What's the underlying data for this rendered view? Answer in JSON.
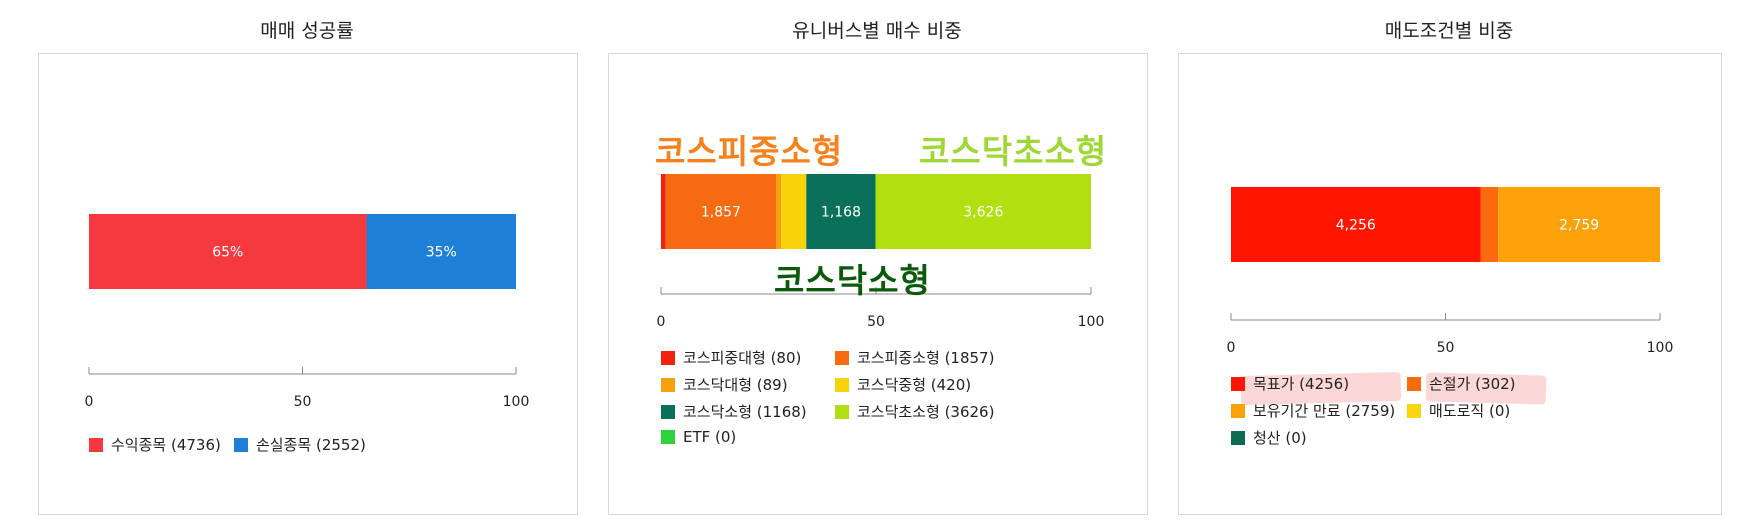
{
  "chart_data": [
    {
      "type": "bar",
      "orientation": "horizontal-stacked",
      "title": "매매 성공률",
      "xlim": [
        0,
        100
      ],
      "ticks": [
        "0",
        "50",
        "100"
      ],
      "series": [
        {
          "name": "수익종목 (4736)",
          "value": 65,
          "label": "65%",
          "color": "#f5393f"
        },
        {
          "name": "손실종목 (2552)",
          "value": 35,
          "label": "35%",
          "color": "#1e7fd6"
        }
      ],
      "legend": "bottom"
    },
    {
      "type": "bar",
      "orientation": "horizontal-stacked",
      "title": "유니버스별 매수 비중",
      "xlim": [
        0,
        100
      ],
      "ticks": [
        "0",
        "50",
        "100"
      ],
      "series": [
        {
          "name": "코스피중대형 (80)",
          "value": 80,
          "label": "",
          "color": "#f2230e"
        },
        {
          "name": "코스피중소형 (1857)",
          "value": 1857,
          "label": "1,857",
          "color": "#f66a12"
        },
        {
          "name": "코스닥대형 (89)",
          "value": 89,
          "label": "",
          "color": "#f9a00e"
        },
        {
          "name": "코스닥중형 (420)",
          "value": 420,
          "label": "",
          "color": "#f8d30a"
        },
        {
          "name": "코스닥소형 (1168)",
          "value": 1168,
          "label": "1,168",
          "color": "#0a7059"
        },
        {
          "name": "코스닥초소형 (3626)",
          "value": 3626,
          "label": "3,626",
          "color": "#b2df10"
        },
        {
          "name": "ETF (0)",
          "value": 0,
          "label": "",
          "color": "#2fd23c"
        }
      ],
      "legend": "bottom",
      "annotations": [
        {
          "text": "코스피중소형",
          "color": "#f5821f"
        },
        {
          "text": "코스닥초소형",
          "color": "#9fd836"
        },
        {
          "text": "코스닥소형",
          "color": "#0a5a0a"
        }
      ]
    },
    {
      "type": "bar",
      "orientation": "horizontal-stacked",
      "title": "매도조건별 비중",
      "xlim": [
        0,
        100
      ],
      "ticks": [
        "0",
        "50",
        "100"
      ],
      "series": [
        {
          "name": "목표가 (4256)",
          "value": 4256,
          "label": "4,256",
          "color": "#ff1500"
        },
        {
          "name": "손절가 (302)",
          "value": 302,
          "label": "",
          "color": "#fb6a0f"
        },
        {
          "name": "보유기간 만료 (2759)",
          "value": 2759,
          "label": "2,759",
          "color": "#fba20b"
        },
        {
          "name": "매도로직 (0)",
          "value": 0,
          "label": "",
          "color": "#f8d60e"
        },
        {
          "name": "청산 (0)",
          "value": 0,
          "label": "",
          "color": "#0e6b53"
        }
      ],
      "legend": "bottom"
    }
  ]
}
